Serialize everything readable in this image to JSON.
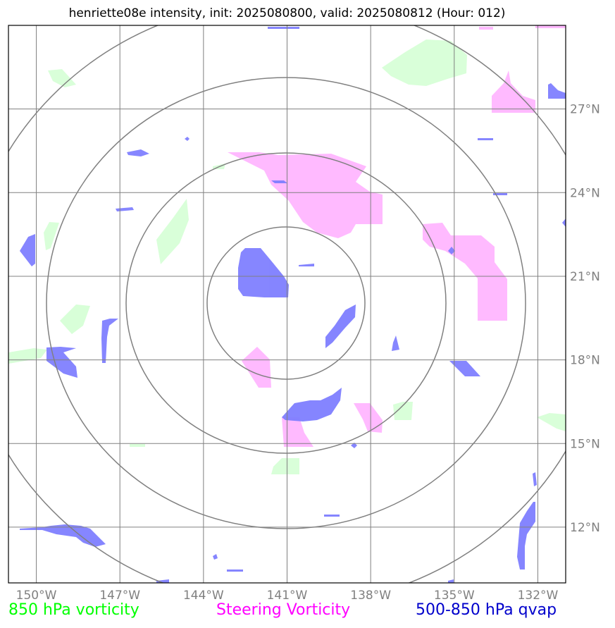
{
  "title": "henriette08e intensity, init: 2025080800, valid: 2025080812 (Hour: 012)",
  "map": {
    "lon_range": [
      -151,
      -131
    ],
    "lat_range": [
      10,
      30
    ],
    "lon_ticks": [
      {
        "value": -150,
        "label": "150°W"
      },
      {
        "value": -147,
        "label": "147°W"
      },
      {
        "value": -144,
        "label": "144°W"
      },
      {
        "value": -141,
        "label": "141°W"
      },
      {
        "value": -138,
        "label": "138°W"
      },
      {
        "value": -135,
        "label": "135°W"
      },
      {
        "value": -132,
        "label": "132°W"
      }
    ],
    "lat_ticks": [
      {
        "value": 12,
        "label": "12°N"
      },
      {
        "value": 15,
        "label": "15°N"
      },
      {
        "value": 18,
        "label": "18°N"
      },
      {
        "value": 21,
        "label": "21°N"
      },
      {
        "value": 24,
        "label": "24°N"
      },
      {
        "value": 27,
        "label": "27°N"
      }
    ],
    "grid": true,
    "range_rings": {
      "center": {
        "lon": -141,
        "lat": 19.6
      },
      "color": "#808080"
    }
  },
  "legend": [
    {
      "label": "850 hPa vorticity",
      "color": "#00ff00"
    },
    {
      "label": "Steering Vorticity",
      "color": "#ff00ff"
    },
    {
      "label": "500-850 hPa qvap",
      "color": "#0000cc"
    }
  ],
  "fields": {
    "vorticity_850_color": "#ccffcc",
    "steering_vorticity_color": "#ffb3ff",
    "qvap_color": "#7f7fff"
  }
}
